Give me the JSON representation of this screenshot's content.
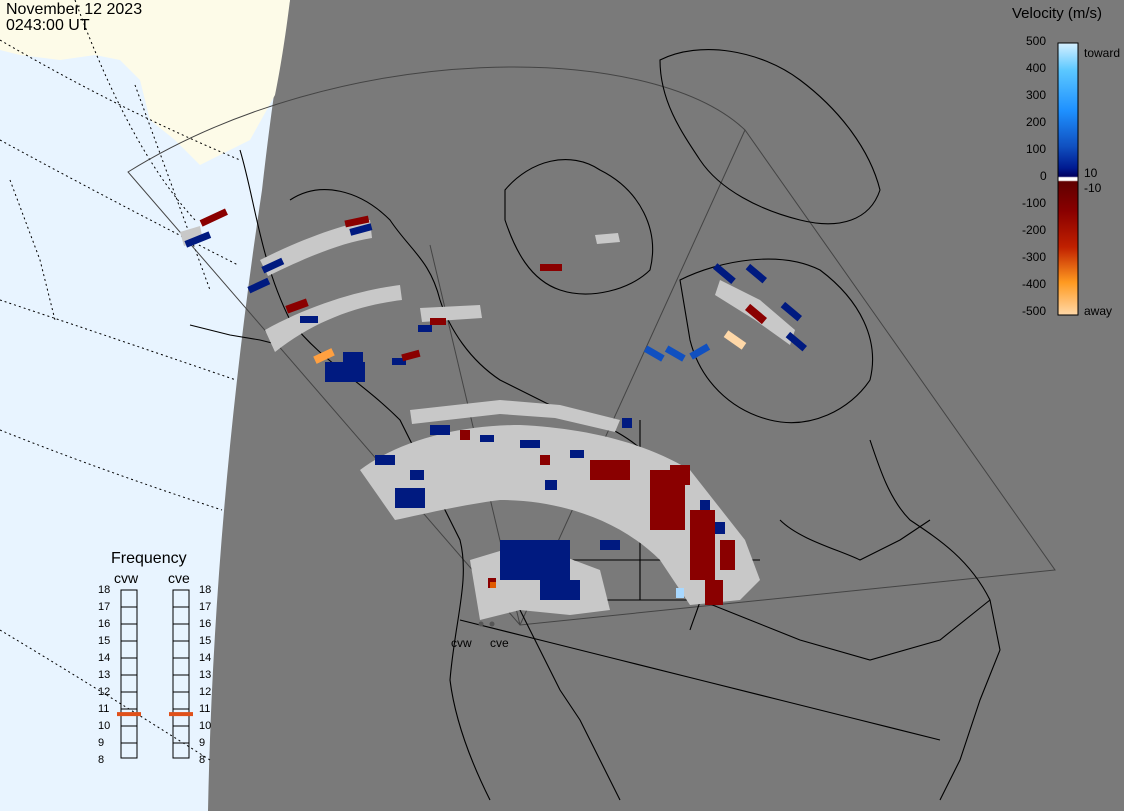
{
  "header": {
    "date": "November 12 2023",
    "time": "0243:00 UT"
  },
  "colors": {
    "space": "#e8f4ff",
    "land_dark": "#7a7a7a",
    "land_light": "#fdfbe8",
    "coast": "#000000",
    "ground_scatter": "#c8c8c8",
    "freq_marker": "#e0501a"
  },
  "colorbar": {
    "title": "Velocity (m/s)",
    "ticks": [
      "500",
      "400",
      "300",
      "200",
      "100",
      "0",
      "-100",
      "-200",
      "-300",
      "-400",
      "-500"
    ],
    "small_ticks": [
      "10",
      "-10"
    ],
    "toward_label": "toward",
    "away_label": "away",
    "stops": [
      "#d6f0ff",
      "#5cc8ff",
      "#1e90ff",
      "#1050c0",
      "#001a90",
      "#000060",
      "#ffffff",
      "#600000",
      "#8a0000",
      "#c02000",
      "#e05a00",
      "#ff9a20",
      "#ffd8a8"
    ]
  },
  "frequency": {
    "title": "Frequency",
    "radars": [
      {
        "name": "cvw",
        "value_mhz": 10.7
      },
      {
        "name": "cve",
        "value_mhz": 10.7
      }
    ],
    "ticks": [
      "18",
      "17",
      "16",
      "15",
      "14",
      "13",
      "12",
      "11",
      "10",
      "9",
      "8"
    ],
    "min": 8,
    "max": 18
  },
  "radar_sites": [
    "cvw",
    "cve"
  ],
  "data_cells": [
    {
      "color": "ground-scatter",
      "count": "many"
    },
    {
      "color": "toward-low",
      "legend": "0 to 100 m/s toward"
    },
    {
      "color": "away-low",
      "legend": "0 to -100 m/s away"
    }
  ]
}
